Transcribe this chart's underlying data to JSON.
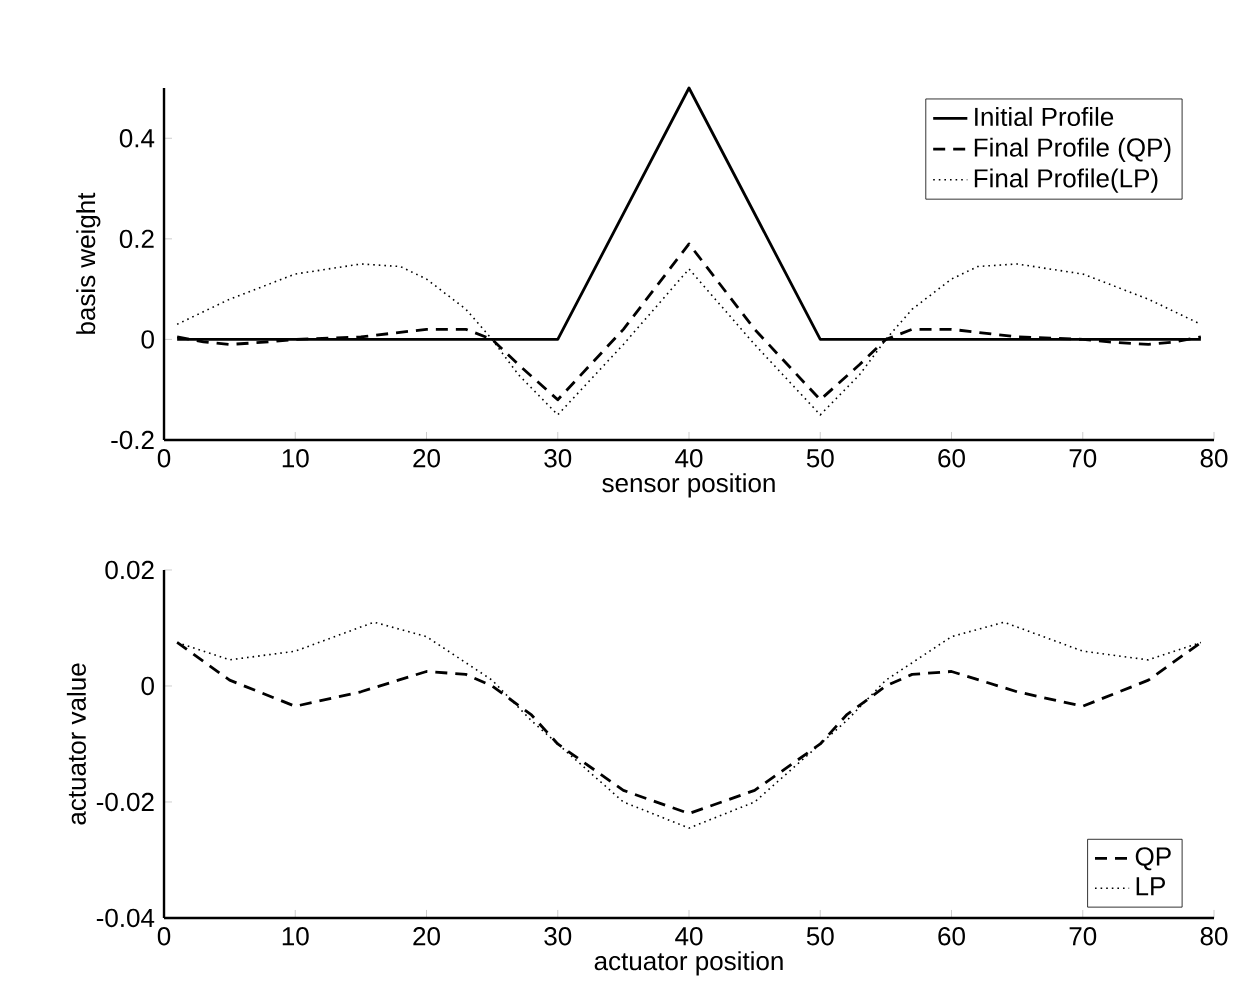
{
  "chart_data": [
    {
      "type": "line",
      "xlabel": "sensor position",
      "ylabel": "basis weight",
      "xlim": [
        0,
        80
      ],
      "ylim": [
        -0.2,
        0.5
      ],
      "xticks": [
        0,
        10,
        20,
        30,
        40,
        50,
        60,
        70,
        80
      ],
      "yticks": [
        -0.2,
        0,
        0.2,
        0.4
      ],
      "legend": "top right",
      "grid": false,
      "series": [
        {
          "name": "Initial Profile",
          "color": "#000000",
          "line_style": "solid",
          "x": [
            1,
            30,
            40,
            50,
            79
          ],
          "values": [
            0,
            0,
            0.5,
            0,
            0
          ]
        },
        {
          "name": "Final Profile (QP)",
          "color": "#000000",
          "line_style": "dashed",
          "x": [
            1,
            3,
            5,
            8,
            10,
            15,
            20,
            23,
            25,
            27,
            30,
            35,
            40,
            45,
            50,
            53,
            55,
            57,
            60,
            65,
            70,
            72,
            75,
            77,
            79
          ],
          "values": [
            0.005,
            -0.005,
            -0.01,
            -0.005,
            0,
            0.005,
            0.02,
            0.02,
            0,
            -0.05,
            -0.12,
            0.02,
            0.19,
            0.02,
            -0.12,
            -0.05,
            0,
            0.02,
            0.02,
            0.005,
            0,
            -0.005,
            -0.01,
            -0.005,
            0.005
          ]
        },
        {
          "name": "Final Profile(LP)",
          "color": "#000000",
          "line_style": "dotted",
          "x": [
            1,
            5,
            10,
            15,
            18,
            20,
            23,
            25,
            27,
            30,
            35,
            40,
            45,
            50,
            53,
            55,
            57,
            60,
            62,
            65,
            70,
            75,
            79
          ],
          "values": [
            0.03,
            0.08,
            0.13,
            0.15,
            0.145,
            0.12,
            0.06,
            0,
            -0.07,
            -0.15,
            -0.01,
            0.14,
            -0.01,
            -0.15,
            -0.07,
            0,
            0.06,
            0.12,
            0.145,
            0.15,
            0.13,
            0.08,
            0.03
          ]
        }
      ]
    },
    {
      "type": "line",
      "xlabel": "actuator position",
      "ylabel": "actuator value",
      "xlim": [
        0,
        80
      ],
      "ylim": [
        -0.04,
        0.02
      ],
      "xticks": [
        0,
        10,
        20,
        30,
        40,
        50,
        60,
        70,
        80
      ],
      "yticks": [
        -0.04,
        -0.02,
        0,
        0.02
      ],
      "legend": "bottom right",
      "grid": false,
      "series": [
        {
          "name": "QP",
          "color": "#000000",
          "line_style": "dashed",
          "x": [
            1,
            5,
            10,
            15,
            20,
            23,
            25,
            28,
            30,
            35,
            40,
            45,
            50,
            52,
            55,
            57,
            60,
            65,
            70,
            75,
            79
          ],
          "values": [
            0.0075,
            0.001,
            -0.0035,
            -0.001,
            0.0025,
            0.002,
            0,
            -0.005,
            -0.01,
            -0.018,
            -0.022,
            -0.018,
            -0.01,
            -0.005,
            0,
            0.002,
            0.0025,
            -0.001,
            -0.0035,
            0.001,
            0.0075
          ]
        },
        {
          "name": "LP",
          "color": "#000000",
          "line_style": "dotted",
          "x": [
            1,
            5,
            10,
            16,
            20,
            25,
            28,
            30,
            35,
            40,
            45,
            50,
            52,
            55,
            60,
            64,
            70,
            75,
            79
          ],
          "values": [
            0.0075,
            0.0045,
            0.006,
            0.011,
            0.0085,
            0.001,
            -0.006,
            -0.01,
            -0.02,
            -0.0245,
            -0.02,
            -0.01,
            -0.006,
            0.001,
            0.0085,
            0.011,
            0.006,
            0.0045,
            0.0075
          ]
        }
      ]
    }
  ]
}
